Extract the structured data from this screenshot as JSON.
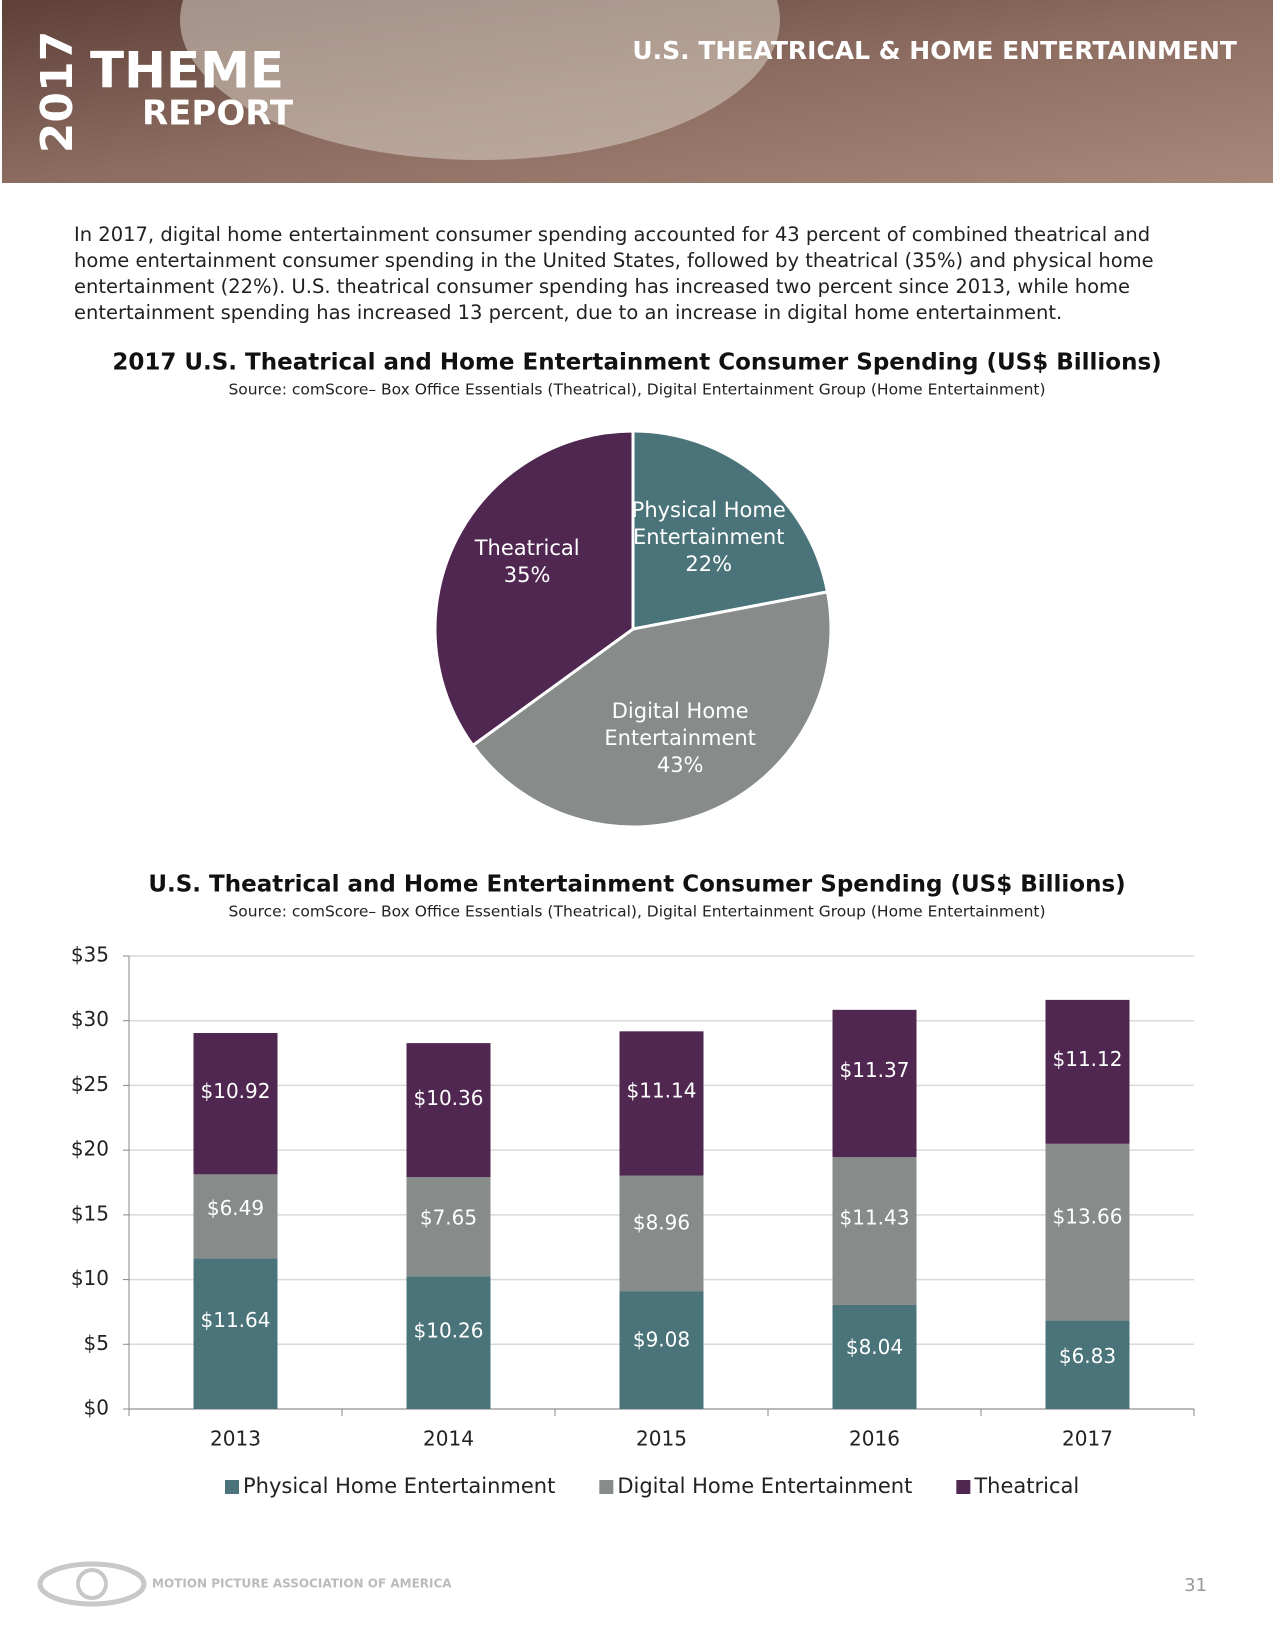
{
  "header": {
    "year": "2017",
    "theme": "THEME",
    "report": "REPORT",
    "section": "U.S. THEATRICAL & HOME ENTERTAINMENT"
  },
  "intro": "In 2017, digital home entertainment consumer spending accounted for 43 percent of combined theatrical and home entertainment consumer spending in the United States, followed by theatrical (35%) and physical home entertainment (22%). U.S. theatrical consumer spending has increased two percent since 2013, while home entertainment spending has increased 13 percent, due to an increase in digital home entertainment.",
  "chart_data": [
    {
      "type": "pie",
      "title": "2017 U.S. Theatrical and Home Entertainment Consumer Spending (US$ Billions)",
      "subtitle": "Source: comScore– Box Office Essentials (Theatrical), Digital Entertainment Group (Home Entertainment)",
      "categories": [
        "Physical Home Entertainment",
        "Digital Home Entertainment",
        "Theatrical"
      ],
      "values": [
        22,
        43,
        35
      ],
      "value_labels": [
        "22%",
        "43%",
        "35%"
      ],
      "colors": [
        "#4a7479",
        "#878b8a",
        "#4f2751"
      ]
    },
    {
      "type": "stacked-bar",
      "title": "U.S. Theatrical and Home Entertainment Consumer Spending (US$ Billions)",
      "subtitle": "Source: comScore– Box Office Essentials (Theatrical), Digital Entertainment Group (Home Entertainment)",
      "categories": [
        "2013",
        "2014",
        "2015",
        "2016",
        "2017"
      ],
      "series": [
        {
          "name": "Physical Home Entertainment",
          "color": "#4a7479",
          "values": [
            11.64,
            10.26,
            9.08,
            8.04,
            6.83
          ],
          "value_labels": [
            "$11.64",
            "$10.26",
            "$9.08",
            "$8.04",
            "$6.83"
          ]
        },
        {
          "name": "Digital Home Entertainment",
          "color": "#878b8a",
          "values": [
            6.49,
            7.65,
            8.96,
            11.43,
            13.66
          ],
          "value_labels": [
            "$6.49",
            "$7.65",
            "$8.96",
            "$11.43",
            "$13.66"
          ]
        },
        {
          "name": "Theatrical",
          "color": "#4f2751",
          "values": [
            10.92,
            10.36,
            11.14,
            11.37,
            11.12
          ],
          "value_labels": [
            "$10.92",
            "$10.36",
            "$11.14",
            "$11.37",
            "$11.12"
          ]
        }
      ],
      "ylim": [
        0,
        35
      ],
      "yticks": [
        {
          "value": 0,
          "label": "$0"
        },
        {
          "value": 5,
          "label": "$5"
        },
        {
          "value": 10,
          "label": "$10"
        },
        {
          "value": 15,
          "label": "$15"
        },
        {
          "value": 20,
          "label": "$20"
        },
        {
          "value": 25,
          "label": "$25"
        },
        {
          "value": 30,
          "label": "$30"
        },
        {
          "value": 35,
          "label": "$35"
        }
      ],
      "grid": true
    }
  ],
  "footer": {
    "org": "MOTION PICTURE ASSOCIATION OF AMERICA",
    "page": 31
  }
}
